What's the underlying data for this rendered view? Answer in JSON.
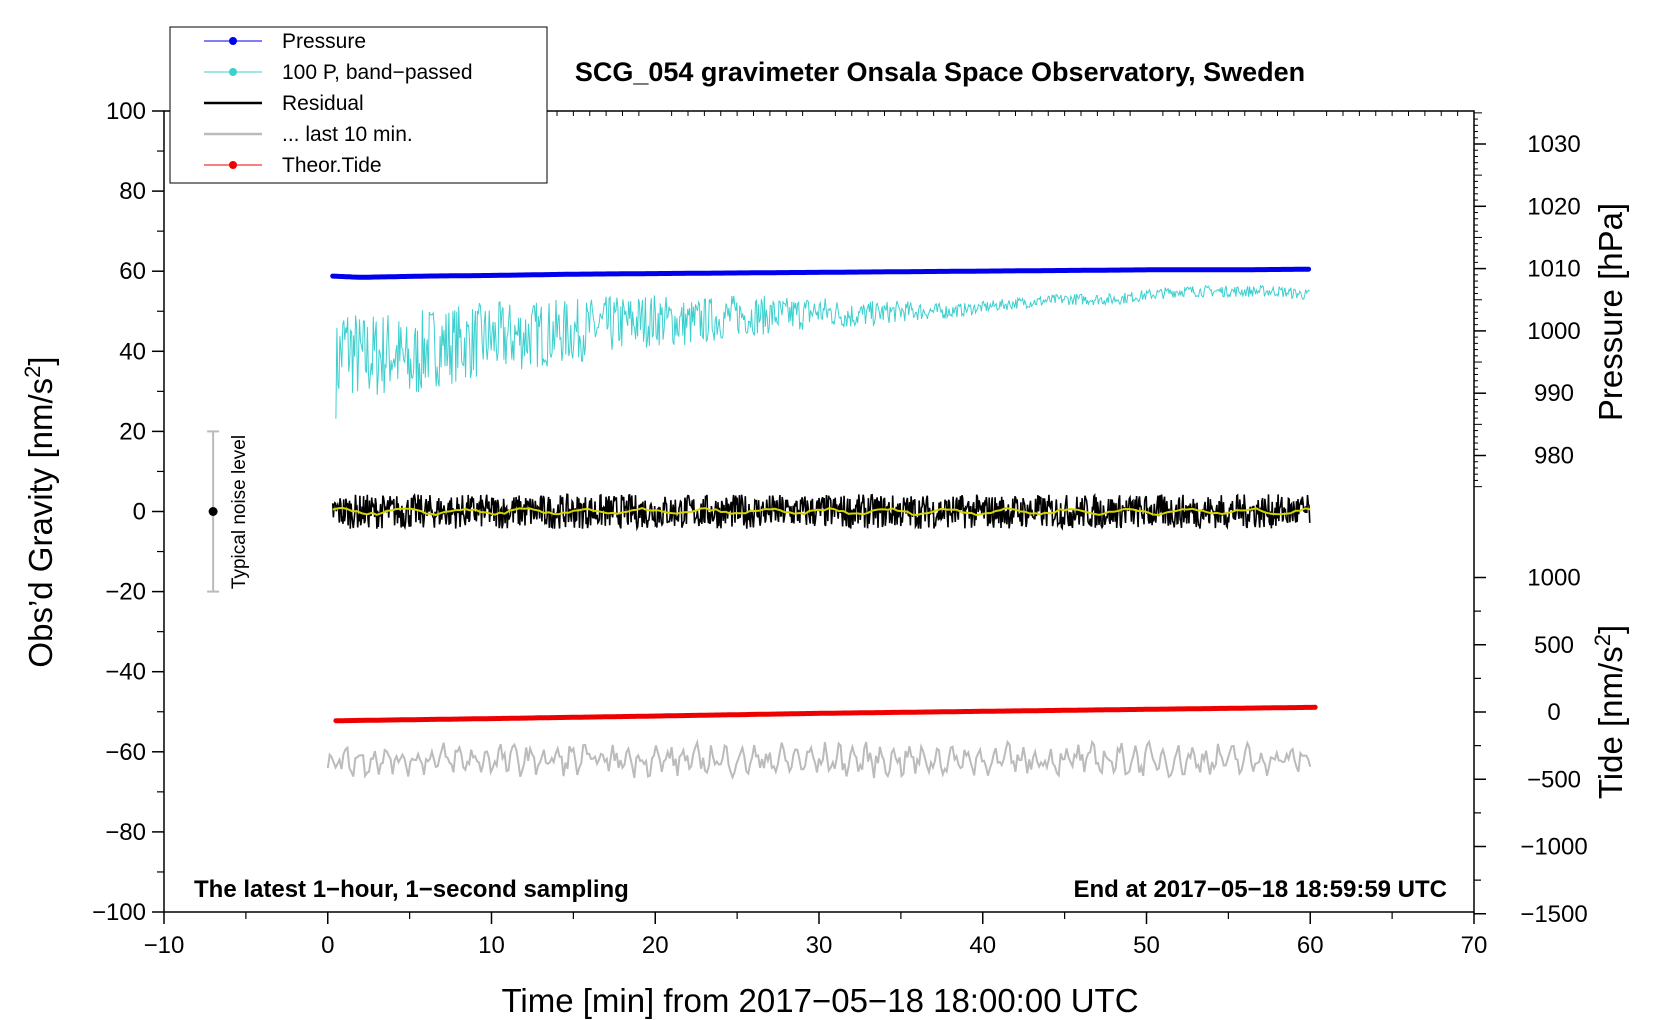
{
  "chart_data": {
    "type": "line",
    "title": "SCG_054 gravimeter Onsala Space Observatory, Sweden",
    "xlabel": "Time [min] from 2017−05−18 18:00:00 UTC",
    "ylabel": "Obs’d Gravity [nm/s",
    "ylabel_sup": "2",
    "ylabel_tail": "]",
    "y2label_pressure": "Pressure [hPa]",
    "y2label_tide": "Tide [nm/s",
    "y2label_tide_sup": "2",
    "y2label_tide_tail": "]",
    "xlim": [
      -10,
      70
    ],
    "ylim": [
      -100,
      100
    ],
    "pressure_lim": [
      970,
      1035
    ],
    "tide_lim": [
      -1500,
      1000
    ],
    "x_ticks": [
      -10,
      0,
      10,
      20,
      30,
      40,
      50,
      60,
      70
    ],
    "x_tick_labels": [
      "−10",
      "0",
      "10",
      "20",
      "30",
      "40",
      "50",
      "60",
      "70"
    ],
    "y_ticks": [
      100,
      80,
      60,
      40,
      20,
      0,
      -20,
      -40,
      -60,
      -80,
      -100
    ],
    "y_tick_labels": [
      "100",
      "80",
      "60",
      "40",
      "20",
      "0",
      "−20",
      "−40",
      "−60",
      "−80",
      "−100"
    ],
    "pressure_ticks": [
      1030,
      1020,
      1010,
      1000,
      990,
      980
    ],
    "pressure_tick_labels": [
      "1030",
      "1020",
      "1010",
      "1000",
      "990",
      "980"
    ],
    "tide_ticks": [
      1000,
      500,
      0,
      -500,
      -1000,
      -1500
    ],
    "tide_tick_labels": [
      "1000",
      "500",
      "0",
      "−500",
      "−1000",
      "−1500"
    ],
    "grid": false,
    "legend_position": "top-left",
    "annotations": {
      "bottom_left": "The latest 1−hour, 1−second sampling",
      "bottom_right": "End at 2017−05−18 18:59:59 UTC",
      "noise_label": "Typical noise level",
      "noise_center": 0,
      "noise_range": [
        -20,
        20
      ],
      "noise_x": -7
    },
    "series": [
      {
        "name": "Pressure",
        "color": "#0000ee",
        "axis": "pressure",
        "style": "line-dots",
        "x": [
          0.3,
          2,
          4,
          6,
          10,
          15,
          20,
          25,
          30,
          35,
          40,
          45,
          50,
          55,
          60
        ],
        "y": [
          1008.8,
          1008.6,
          1008.7,
          1008.8,
          1008.9,
          1009.1,
          1009.2,
          1009.3,
          1009.4,
          1009.5,
          1009.6,
          1009.7,
          1009.8,
          1009.8,
          1009.9
        ]
      },
      {
        "name": "100 P, band−passed",
        "color": "#3ecfcf",
        "axis": "gravity",
        "style": "line-dots",
        "x": [
          0.5,
          1,
          2,
          4,
          5,
          6,
          8,
          10,
          12,
          15,
          18,
          20,
          22,
          25,
          28,
          30,
          32,
          35,
          38,
          40,
          42,
          45,
          48,
          50,
          52,
          55,
          58,
          60
        ],
        "y": [
          35,
          42,
          38,
          40,
          36,
          41,
          42,
          43,
          44,
          45,
          47,
          48,
          47,
          49,
          49,
          50,
          49,
          50,
          50,
          51,
          52,
          53,
          53,
          54,
          55,
          55,
          55,
          54
        ]
      },
      {
        "name": "Residual",
        "color": "#000000",
        "axis": "gravity",
        "style": "line",
        "x": [
          0.3,
          10,
          20,
          30,
          40,
          50,
          60
        ],
        "y": [
          0,
          0,
          0,
          0,
          0,
          0,
          0
        ]
      },
      {
        "name": "... last 10 min.",
        "color": "#bbbbbb",
        "axis": "gravity",
        "style": "line",
        "x": [
          0,
          10,
          20,
          30,
          40,
          50,
          60
        ],
        "y": [
          -62,
          -62,
          -62,
          -62,
          -62,
          -62,
          -62
        ]
      },
      {
        "name": "Theor.Tide",
        "color": "#ee0000",
        "axis": "tide",
        "style": "line-dots",
        "x": [
          0.5,
          10,
          20,
          30,
          40,
          50,
          60.5
        ],
        "y": [
          -65,
          -49,
          -30,
          -10,
          5,
          20,
          35
        ]
      }
    ]
  }
}
